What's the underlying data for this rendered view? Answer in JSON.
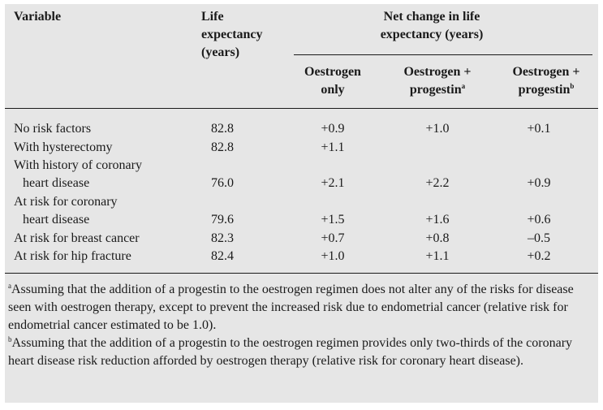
{
  "table": {
    "headers": {
      "variable": "Variable",
      "life_expectancy_line1": "Life",
      "life_expectancy_line2": "expectancy",
      "life_expectancy_line3": "(years)",
      "net_change_line1": "Net change in life",
      "net_change_line2": "expectancy (years)",
      "col_oestrogen_line1": "Oestrogen",
      "col_oestrogen_line2": "only",
      "col_op_a_line1": "Oestrogen +",
      "col_op_a_line2": "progestin",
      "col_op_a_sup": "a",
      "col_op_b_line1": "Oestrogen +",
      "col_op_b_line2": "progestin",
      "col_op_b_sup": "b"
    },
    "rows": [
      {
        "label": "No risk factors",
        "label2": "",
        "life": "82.8",
        "oestrogen": "+0.9",
        "op_a": "+1.0",
        "op_b": "+0.1"
      },
      {
        "label": "With hysterectomy",
        "label2": "",
        "life": "82.8",
        "oestrogen": "+1.1",
        "op_a": "",
        "op_b": ""
      },
      {
        "label": "With history of coronary",
        "label2": "heart disease",
        "life": "76.0",
        "oestrogen": "+2.1",
        "op_a": "+2.2",
        "op_b": "+0.9"
      },
      {
        "label": "At risk for coronary",
        "label2": "heart disease",
        "life": "79.6",
        "oestrogen": "+1.5",
        "op_a": "+1.6",
        "op_b": "+0.6"
      },
      {
        "label": "At risk for breast cancer",
        "label2": "",
        "life": "82.3",
        "oestrogen": "+0.7",
        "op_a": "+0.8",
        "op_b": "–0.5"
      },
      {
        "label": "At risk for hip fracture",
        "label2": "",
        "life": "82.4",
        "oestrogen": "+1.0",
        "op_a": "+1.1",
        "op_b": "+0.2"
      }
    ]
  },
  "footnotes": {
    "a_marker": "a",
    "a_text": "Assuming that the addition of a progestin to the oestrogen regimen does not alter any of the risks for disease seen with oestrogen therapy, except to prevent the increased risk due to endometrial cancer (relative risk for endometrial cancer estimated to be 1.0).",
    "b_marker": "b",
    "b_text": "Assuming that the addition of a progestin to the oestrogen regimen provides only two-thirds of the coronary heart disease risk reduction afforded by oestrogen therapy (relative risk for coronary heart disease)."
  }
}
